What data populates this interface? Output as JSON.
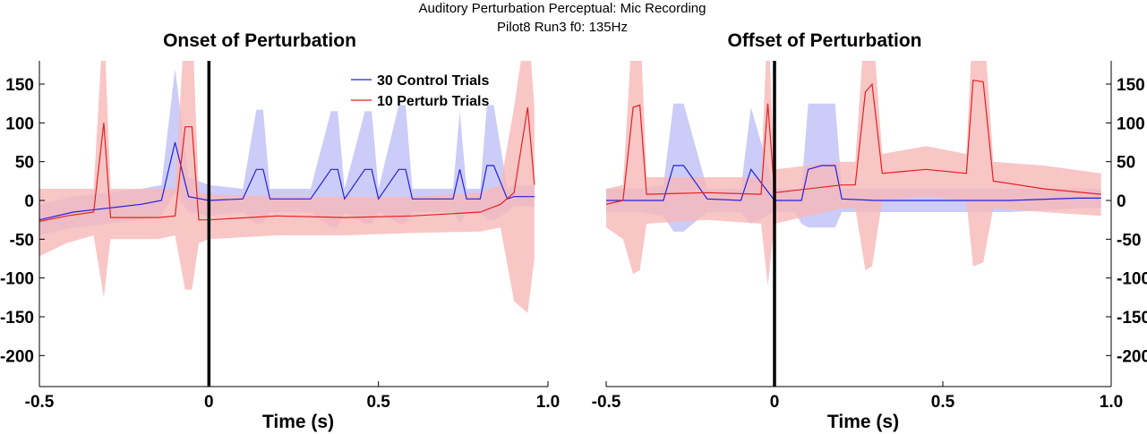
{
  "figure": {
    "suptitle": "Auditory Perturbation Perceptual: Mic Recording",
    "subtitle": "Pilot8 Run3   f0: 135Hz"
  },
  "colors": {
    "control_line": "#2020e0",
    "control_band": "#b0b0f4",
    "perturb_line": "#e52020",
    "perturb_band": "#f8b8b8",
    "event_line": "#000000"
  },
  "chart_data": [
    {
      "type": "line",
      "title": "Onset of Perturbation",
      "xlabel": "Time (s)",
      "ylabel": "",
      "xlim": [
        -0.5,
        1.0
      ],
      "ylim": [
        -240,
        180
      ],
      "xticks": [
        -0.5,
        0,
        0.5,
        1.0
      ],
      "xtick_labels": [
        "-0.5",
        "0",
        "0.5",
        "1.0"
      ],
      "yticks": [
        -200,
        -150,
        -100,
        -50,
        0,
        50,
        100,
        150
      ],
      "ytick_labels": [
        "-200",
        "-150",
        "-100",
        "-50",
        "0",
        "50",
        "100",
        "150"
      ],
      "ytick_side": "left",
      "event_x": 0,
      "legend": {
        "position": "top-right",
        "entries": [
          "30 Control Trials",
          "10 Perturb Trials"
        ]
      },
      "series": [
        {
          "name": "30 Control Trials",
          "color_key": "control",
          "x": [
            -0.5,
            -0.4,
            -0.3,
            -0.2,
            -0.14,
            -0.1,
            -0.06,
            0.0,
            0.1,
            0.14,
            0.16,
            0.18,
            0.3,
            0.36,
            0.38,
            0.4,
            0.46,
            0.48,
            0.5,
            0.56,
            0.58,
            0.6,
            0.72,
            0.74,
            0.76,
            0.8,
            0.82,
            0.84,
            0.88,
            0.9,
            0.96
          ],
          "y": [
            -25,
            -15,
            -10,
            -5,
            0,
            75,
            5,
            0,
            2,
            40,
            40,
            2,
            2,
            40,
            40,
            2,
            40,
            40,
            2,
            40,
            40,
            2,
            2,
            40,
            2,
            2,
            45,
            45,
            2,
            5,
            5
          ],
          "lower": [
            -45,
            -35,
            -30,
            -25,
            -20,
            10,
            -15,
            -20,
            -15,
            -30,
            -30,
            -15,
            -15,
            -35,
            -35,
            -15,
            -30,
            -30,
            -15,
            -30,
            -30,
            -15,
            -15,
            -30,
            -15,
            -15,
            -25,
            -25,
            -15,
            -8,
            -8
          ],
          "upper": [
            -5,
            5,
            10,
            15,
            20,
            170,
            30,
            20,
            15,
            117,
            117,
            15,
            15,
            115,
            115,
            15,
            115,
            115,
            15,
            123,
            123,
            15,
            15,
            115,
            15,
            15,
            123,
            123,
            15,
            20,
            20
          ]
        },
        {
          "name": "10 Perturb Trials",
          "color_key": "perturb",
          "x": [
            -0.5,
            -0.42,
            -0.34,
            -0.31,
            -0.29,
            -0.15,
            -0.1,
            -0.07,
            -0.05,
            -0.03,
            0.0,
            0.2,
            0.4,
            0.6,
            0.8,
            0.86,
            0.9,
            0.94,
            0.96
          ],
          "y": [
            -27,
            -20,
            -15,
            100,
            -22,
            -22,
            -20,
            95,
            95,
            -25,
            -25,
            -20,
            -22,
            -20,
            -15,
            -5,
            10,
            120,
            20
          ],
          "lower": [
            -72,
            -55,
            -45,
            -125,
            -50,
            -50,
            -45,
            -115,
            -115,
            -55,
            -50,
            -45,
            -45,
            -42,
            -40,
            -35,
            -130,
            -145,
            -75
          ],
          "upper": [
            15,
            15,
            15,
            240,
            15,
            15,
            15,
            240,
            240,
            10,
            8,
            5,
            5,
            5,
            10,
            20,
            120,
            240,
            120
          ]
        }
      ]
    },
    {
      "type": "line",
      "title": "Offset of Perturbation",
      "xlabel": "Time (s)",
      "ylabel": "",
      "xlim": [
        -0.5,
        1.0
      ],
      "ylim": [
        -240,
        180
      ],
      "xticks": [
        -0.5,
        0,
        0.5,
        1.0
      ],
      "xtick_labels": [
        "-0.5",
        "0",
        "0.5",
        "1.0"
      ],
      "yticks": [
        -200,
        -150,
        -100,
        -50,
        0,
        50,
        100,
        150
      ],
      "ytick_labels": [
        "-200",
        "-150",
        "-100",
        "-50",
        "0",
        "50",
        "100",
        "150"
      ],
      "ytick_side": "right",
      "event_x": 0,
      "series": [
        {
          "name": "30 Control Trials",
          "color_key": "control",
          "x": [
            -0.5,
            -0.4,
            -0.33,
            -0.3,
            -0.27,
            -0.2,
            -0.1,
            -0.07,
            0.0,
            0.06,
            0.08,
            0.1,
            0.14,
            0.18,
            0.2,
            0.3,
            0.5,
            0.7,
            0.9,
            0.97
          ],
          "y": [
            0,
            0,
            0,
            45,
            45,
            2,
            0,
            40,
            0,
            0,
            0,
            40,
            45,
            45,
            2,
            0,
            0,
            0,
            3,
            3
          ],
          "lower": [
            -15,
            -15,
            -20,
            -40,
            -40,
            -15,
            -15,
            -30,
            -15,
            -15,
            -30,
            -35,
            -35,
            -35,
            -15,
            -15,
            -15,
            -15,
            -10,
            -10
          ],
          "upper": [
            15,
            15,
            20,
            125,
            125,
            15,
            15,
            120,
            15,
            15,
            15,
            125,
            125,
            125,
            15,
            15,
            15,
            15,
            15,
            15
          ]
        },
        {
          "name": "10 Perturb Trials",
          "color_key": "perturb",
          "x": [
            -0.5,
            -0.45,
            -0.42,
            -0.4,
            -0.38,
            -0.2,
            -0.04,
            -0.02,
            0.0,
            0.2,
            0.24,
            0.27,
            0.29,
            0.32,
            0.45,
            0.57,
            0.59,
            0.62,
            0.65,
            0.8,
            0.97
          ],
          "y": [
            -5,
            0,
            120,
            123,
            8,
            10,
            8,
            125,
            10,
            20,
            20,
            140,
            150,
            35,
            40,
            35,
            155,
            153,
            25,
            15,
            8
          ],
          "lower": [
            -35,
            -50,
            -95,
            -90,
            -30,
            -25,
            -30,
            -110,
            -30,
            -10,
            -10,
            -90,
            -85,
            0,
            5,
            0,
            -85,
            -80,
            -10,
            -15,
            -20
          ],
          "upper": [
            15,
            20,
            240,
            240,
            30,
            30,
            30,
            240,
            40,
            50,
            50,
            240,
            240,
            60,
            70,
            60,
            240,
            240,
            50,
            45,
            35
          ]
        }
      ]
    }
  ]
}
